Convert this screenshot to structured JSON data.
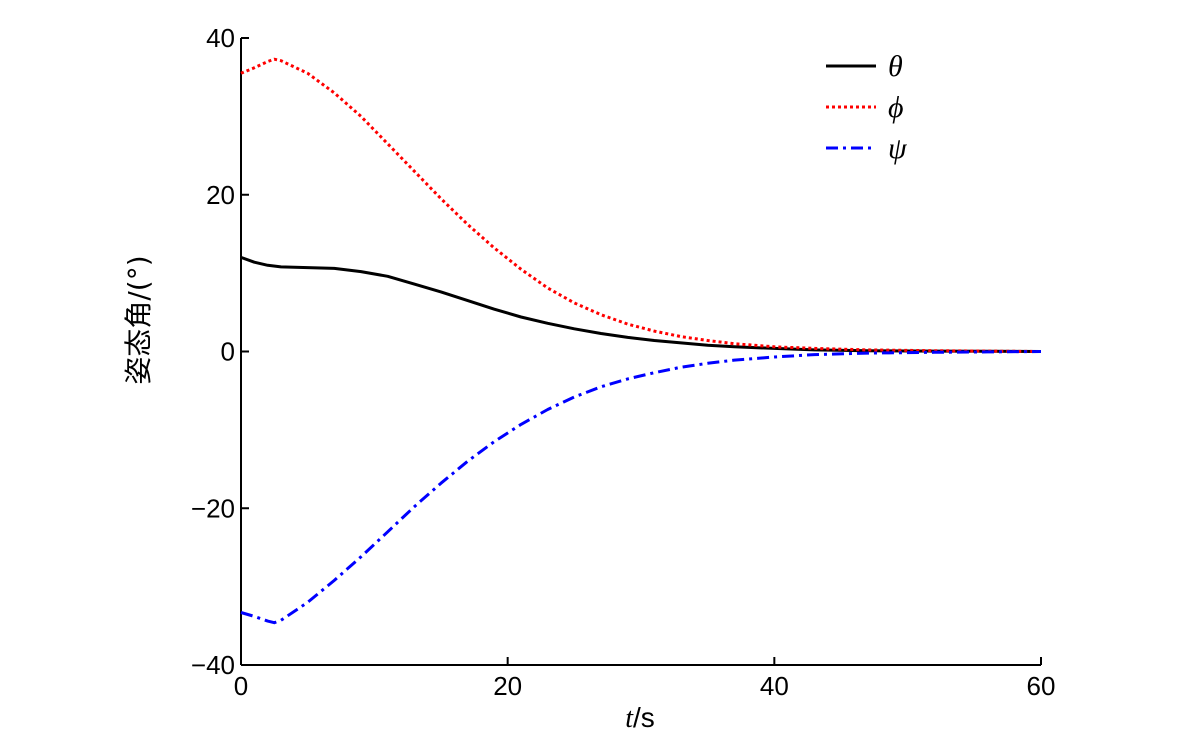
{
  "chart_data": {
    "type": "line",
    "xlabel_var": "t",
    "xlabel_unit": "/s",
    "ylabel": "姿态角/(°)",
    "xlim": [
      0,
      60
    ],
    "ylim": [
      -40,
      40
    ],
    "xticks": [
      0,
      20,
      40,
      60
    ],
    "yticks": [
      -40,
      -20,
      0,
      20,
      40
    ],
    "xtick_labels": [
      "0",
      "20",
      "40",
      "60"
    ],
    "ytick_labels": [
      "−40",
      "−20",
      "0",
      "20",
      "40"
    ],
    "grid": false,
    "legend_position": "top-right",
    "series": [
      {
        "name": "θ",
        "color": "#000000",
        "style": "solid",
        "x": [
          0,
          1,
          2,
          3,
          5,
          7,
          9,
          11,
          13,
          15,
          17,
          19,
          21,
          23,
          25,
          27,
          29,
          31,
          33,
          35,
          37,
          40,
          43,
          47,
          52,
          56,
          60
        ],
        "y": [
          12,
          11.4,
          11,
          10.8,
          10.7,
          10.6,
          10.2,
          9.6,
          8.6,
          7.6,
          6.5,
          5.4,
          4.4,
          3.6,
          2.9,
          2.3,
          1.8,
          1.4,
          1.1,
          0.8,
          0.6,
          0.4,
          0.2,
          0.1,
          0.05,
          0.02,
          0
        ]
      },
      {
        "name": "ϕ",
        "color": "#ff0000",
        "style": "dotted",
        "x": [
          0,
          1,
          2,
          2.5,
          3,
          5,
          7,
          9,
          11,
          13,
          15,
          17,
          19,
          21,
          23,
          25,
          27,
          29,
          31,
          33,
          35,
          37,
          40,
          43,
          47,
          52,
          56,
          60
        ],
        "y": [
          35.5,
          36.2,
          37,
          37.3,
          37.1,
          35.5,
          33,
          30,
          26.5,
          23,
          19.5,
          16.2,
          13.2,
          10.5,
          8.1,
          6.2,
          4.7,
          3.5,
          2.6,
          1.9,
          1.4,
          1,
          0.6,
          0.4,
          0.2,
          0.1,
          0.05,
          0
        ]
      },
      {
        "name": "ψ",
        "color": "#0000ff",
        "style": "dashdot",
        "x": [
          0,
          1,
          2,
          2.5,
          3,
          5,
          7,
          9,
          11,
          13,
          15,
          17,
          19,
          21,
          23,
          25,
          27,
          29,
          31,
          33,
          35,
          37,
          40,
          43,
          47,
          52,
          56,
          60
        ],
        "y": [
          -33.3,
          -33.8,
          -34.4,
          -34.6,
          -34.3,
          -32,
          -29.2,
          -26.2,
          -23,
          -19.8,
          -16.8,
          -14,
          -11.5,
          -9.3,
          -7.4,
          -5.8,
          -4.5,
          -3.5,
          -2.7,
          -2,
          -1.5,
          -1.1,
          -0.7,
          -0.4,
          -0.2,
          -0.1,
          -0.05,
          0
        ]
      }
    ]
  }
}
